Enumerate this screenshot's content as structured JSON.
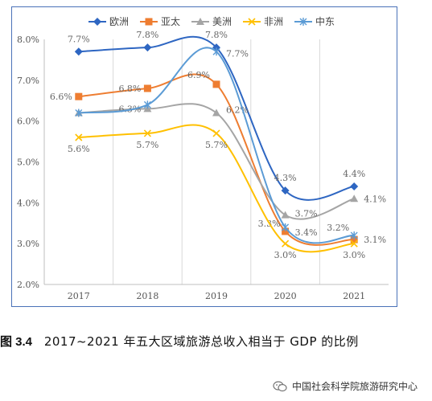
{
  "chart_data": {
    "type": "line",
    "x": [
      "2017",
      "2018",
      "2019",
      "2020",
      "2021"
    ],
    "yticks": [
      "2.0%",
      "3.0%",
      "4.0%",
      "5.0%",
      "6.0%",
      "7.0%",
      "8.0%"
    ],
    "ylim": [
      2.0,
      8.0
    ],
    "grid": "vertical",
    "legend": "top",
    "series": [
      {
        "name": "欧洲",
        "color": "#2e66c2",
        "marker": "diamond",
        "values": [
          7.7,
          7.8,
          7.8,
          4.3,
          4.4
        ],
        "labels": [
          "7.7%",
          "7.8%",
          "7.8%",
          "4.3%",
          "4.4%"
        ]
      },
      {
        "name": "亚太",
        "color": "#ee7d31",
        "marker": "square",
        "values": [
          6.6,
          6.8,
          6.9,
          3.3,
          3.1
        ],
        "labels": [
          "6.6%",
          "6.8%",
          "6.9%",
          "3.3%",
          "3.1%"
        ]
      },
      {
        "name": "美洲",
        "color": "#a5a5a5",
        "marker": "triangle",
        "values": [
          6.2,
          6.3,
          6.2,
          3.7,
          4.1
        ],
        "labels": [
          "",
          "6.3%",
          "6.2%",
          "3.7%",
          "4.1%"
        ]
      },
      {
        "name": "非洲",
        "color": "#ffc000",
        "marker": "x",
        "values": [
          5.6,
          5.7,
          5.7,
          3.0,
          3.0
        ],
        "labels": [
          "5.6%",
          "5.7%",
          "5.7%",
          "3.0%",
          "3.0%"
        ]
      },
      {
        "name": "中东",
        "color": "#5b9bd5",
        "marker": "star",
        "values": [
          6.2,
          6.4,
          7.7,
          3.4,
          3.2
        ],
        "labels": [
          "",
          "",
          "7.7%",
          "3.4%",
          "3.2%"
        ]
      }
    ]
  },
  "caption": {
    "figure_no": "图 3.4",
    "text": "2017~2021 年五大区域旅游总收入相当于 GDP 的比例"
  },
  "watermark": {
    "text": "中国社会科学院旅游研究中心",
    "icon": "wechat-icon"
  }
}
